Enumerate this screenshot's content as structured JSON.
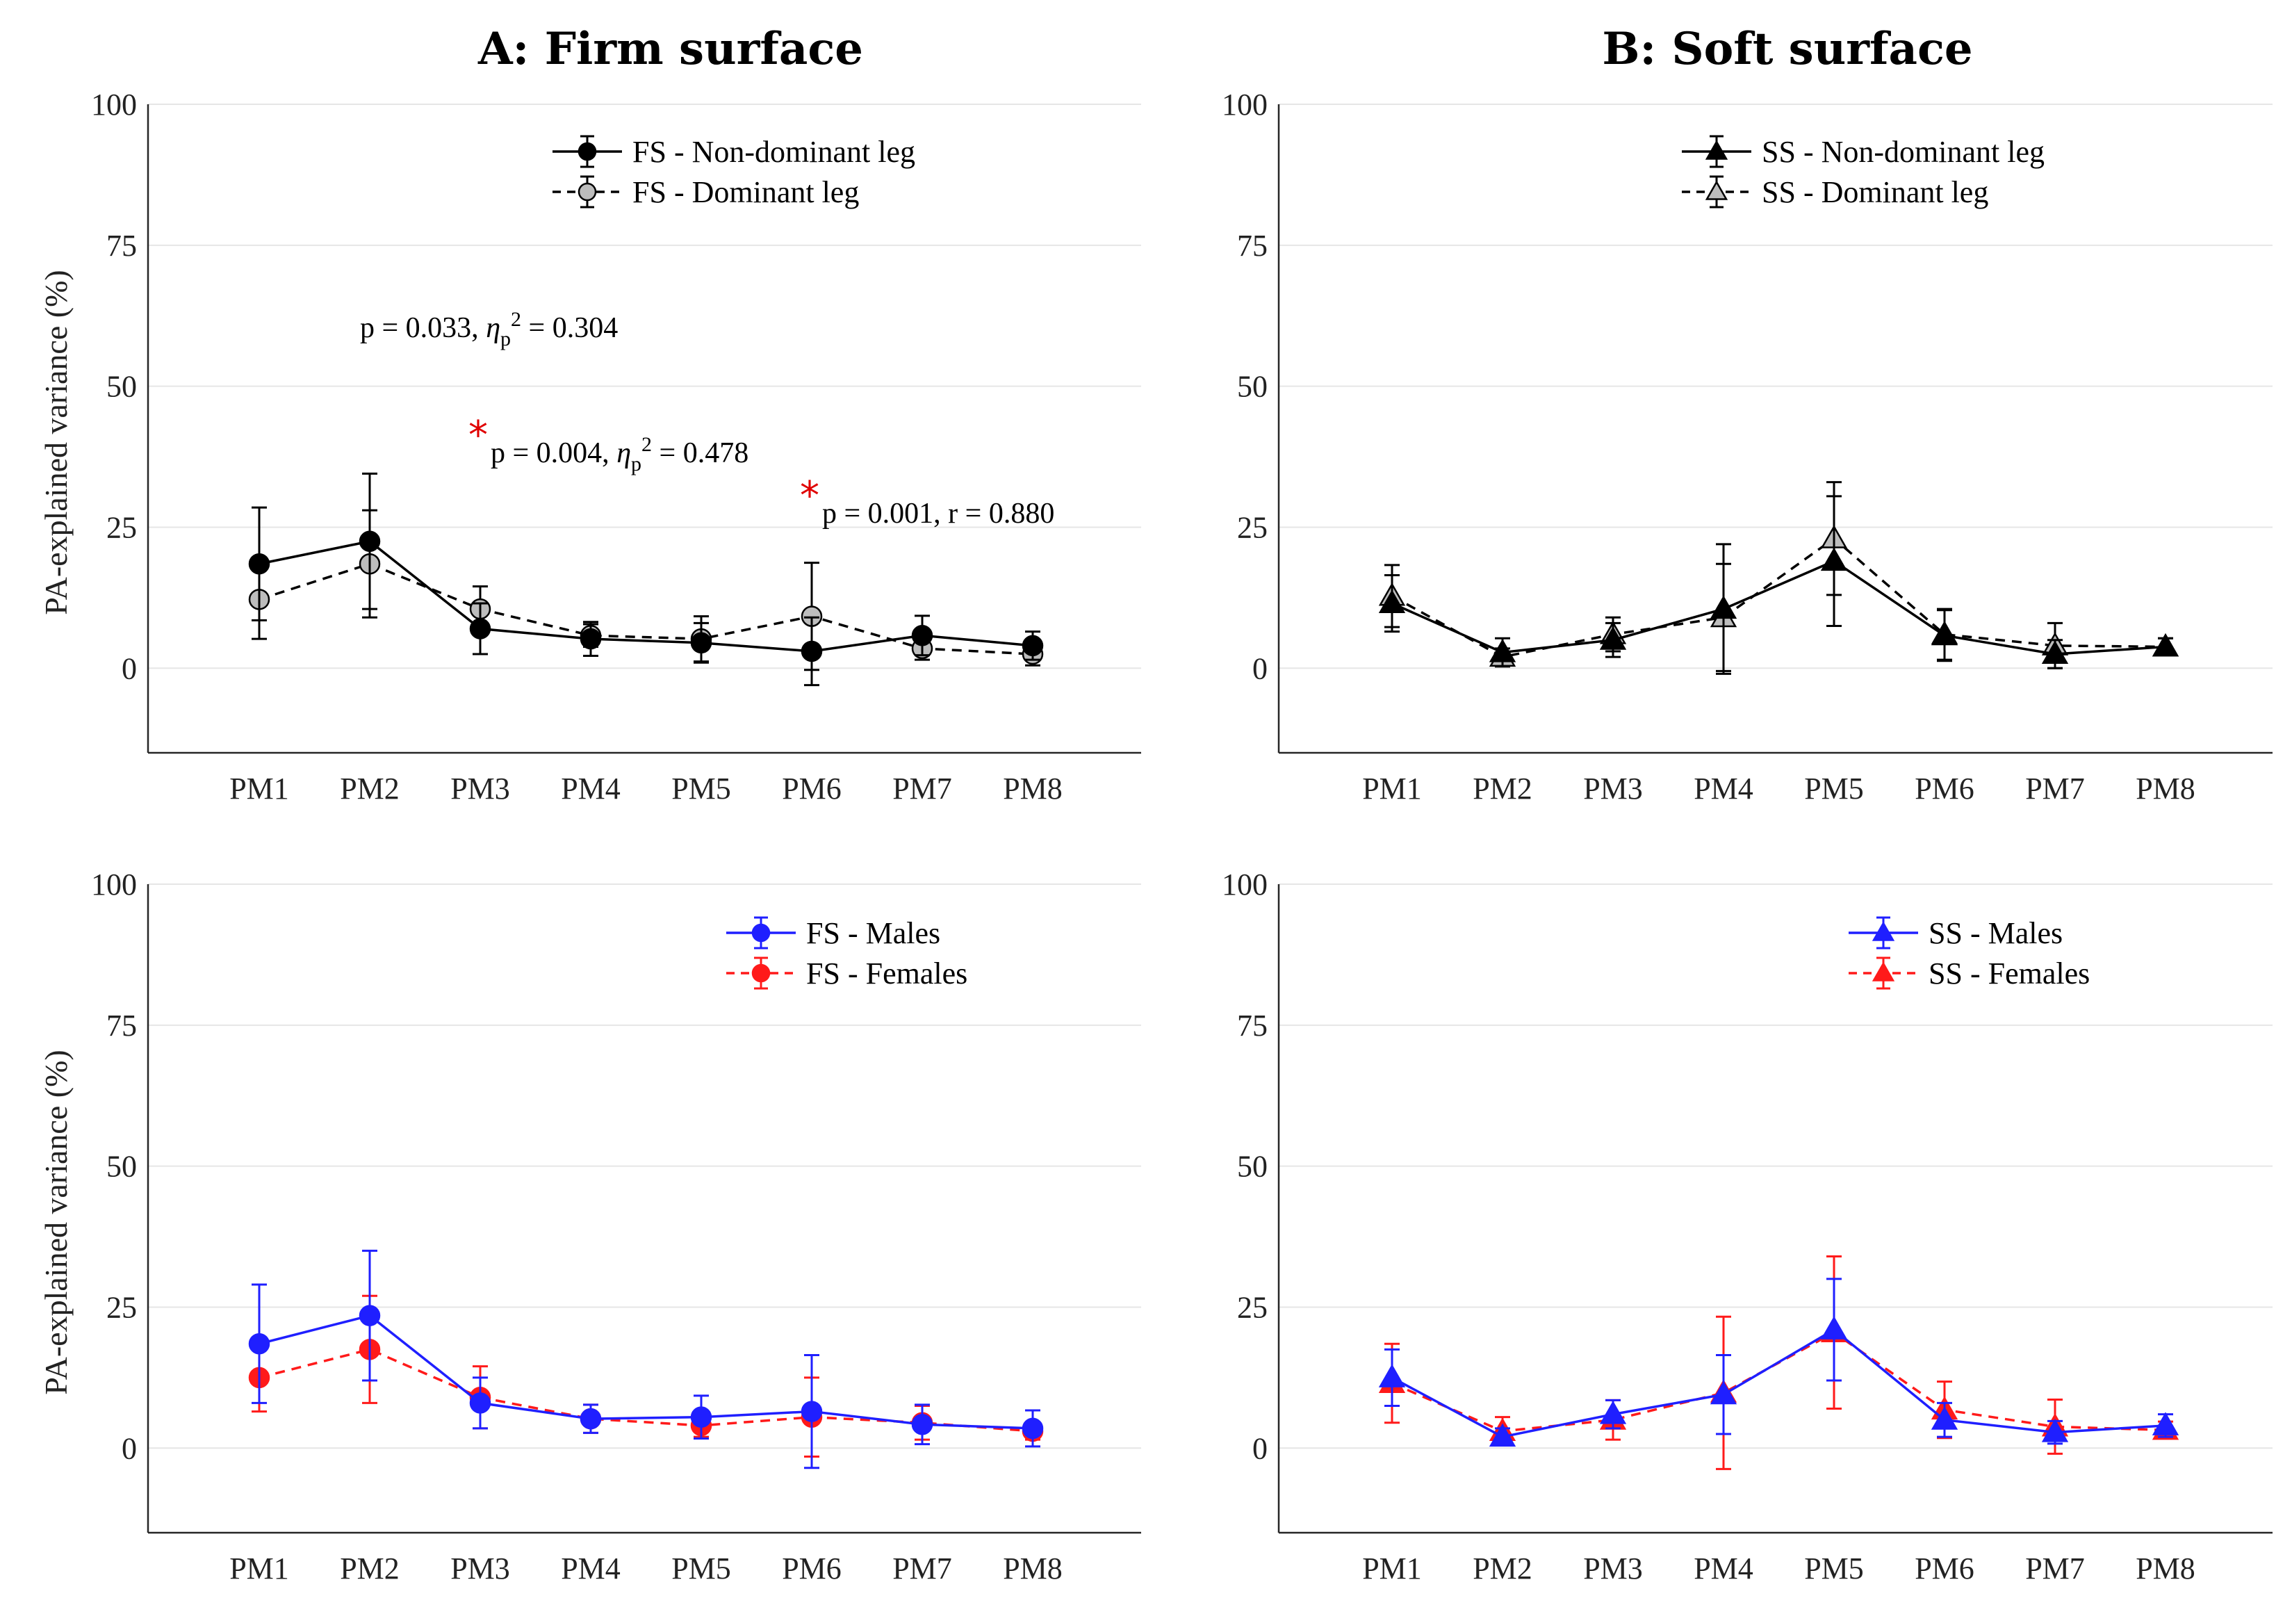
{
  "chart_data": [
    {
      "panel": "A-top",
      "type": "line",
      "title": "A: Firm surface",
      "ylabel": "PA-explained variance (%)",
      "xlabel": "",
      "ylim": [
        -15,
        100
      ],
      "yticks": [
        0,
        25,
        50,
        75,
        100
      ],
      "categories": [
        "PM1",
        "PM2",
        "PM3",
        "PM4",
        "PM5",
        "PM6",
        "PM7",
        "PM8"
      ],
      "legend_position": "top-right",
      "series": [
        {
          "name": "FS - Non-dominant leg",
          "color": "#000000",
          "marker_fill": "#000000",
          "marker": "circle",
          "dash": "solid",
          "values": [
            18.5,
            22.5,
            7.0,
            5.2,
            4.5,
            3.0,
            5.8,
            4.0
          ],
          "err": [
            10.0,
            12.0,
            4.5,
            3.0,
            3.5,
            6.0,
            3.5,
            2.5
          ]
        },
        {
          "name": "FS - Dominant leg",
          "color": "#000000",
          "marker_fill": "#bdbdbd",
          "marker": "circle",
          "dash": "dashed",
          "values": [
            12.2,
            18.5,
            10.5,
            5.8,
            5.2,
            9.2,
            3.5,
            2.5
          ],
          "err": [
            7.0,
            9.5,
            4.0,
            2.0,
            4.0,
            9.5,
            2.0,
            2.0
          ]
        }
      ],
      "annotations": [
        {
          "label": "p = 0.033, ",
          "eta": "η",
          "sub": "p",
          "sup": "2",
          "tail": " = 0.304",
          "star": false
        },
        {
          "label": "p = 0.004, ",
          "eta": "η",
          "sub": "p",
          "sup": "2",
          "tail": " = 0.478",
          "star": true
        },
        {
          "label": "p = 0.001, r = 0.880",
          "star": true
        }
      ]
    },
    {
      "panel": "B-top",
      "type": "line",
      "title": "B: Soft surface",
      "ylabel": "",
      "xlabel": "",
      "ylim": [
        -15,
        100
      ],
      "yticks": [
        0,
        25,
        50,
        75,
        100
      ],
      "categories": [
        "PM1",
        "PM2",
        "PM3",
        "PM4",
        "PM5",
        "PM6",
        "PM7",
        "PM8"
      ],
      "legend_position": "top-right",
      "series": [
        {
          "name": "SS - Non-dominant leg",
          "color": "#000000",
          "marker_fill": "#000000",
          "marker": "triangle",
          "dash": "solid",
          "values": [
            11.5,
            2.8,
            5.0,
            10.5,
            19.0,
            5.8,
            2.5,
            3.8
          ],
          "err": [
            5.0,
            2.5,
            3.0,
            11.5,
            11.5,
            4.5,
            2.5,
            1.5
          ]
        },
        {
          "name": "SS - Dominant leg",
          "color": "#000000",
          "marker_fill": "#bdbdbd",
          "marker": "triangle",
          "dash": "dashed",
          "values": [
            12.8,
            2.0,
            6.0,
            9.0,
            23.0,
            6.0,
            4.0,
            3.8
          ],
          "err": [
            5.5,
            1.5,
            3.0,
            9.5,
            10.0,
            4.5,
            4.0,
            1.5
          ]
        }
      ]
    },
    {
      "panel": "A-bottom",
      "type": "line",
      "ylabel": "PA-explained variance (%)",
      "xlabel": "",
      "ylim": [
        -15,
        100
      ],
      "yticks": [
        0,
        25,
        50,
        75,
        100
      ],
      "categories": [
        "PM1",
        "PM2",
        "PM3",
        "PM4",
        "PM5",
        "PM6",
        "PM7",
        "PM8"
      ],
      "legend_position": "top-right",
      "series": [
        {
          "name": "FS - Males",
          "color": "#1f1fff",
          "marker_fill": "#1f1fff",
          "marker": "circle",
          "dash": "solid",
          "values": [
            18.5,
            23.5,
            8.0,
            5.2,
            5.5,
            6.5,
            4.2,
            3.5
          ],
          "err": [
            10.5,
            11.5,
            4.5,
            2.5,
            3.8,
            10.0,
            3.5,
            3.2
          ]
        },
        {
          "name": "FS - Females",
          "color": "#ff1a1a",
          "marker_fill": "#ff1a1a",
          "marker": "circle",
          "dash": "dashed",
          "values": [
            12.5,
            17.5,
            9.0,
            5.2,
            4.0,
            5.5,
            4.5,
            3.0
          ],
          "err": [
            6.0,
            9.5,
            5.5,
            2.5,
            2.0,
            7.0,
            3.0,
            1.5
          ]
        }
      ]
    },
    {
      "panel": "B-bottom",
      "type": "line",
      "ylabel": "",
      "xlabel": "",
      "ylim": [
        -15,
        100
      ],
      "yticks": [
        0,
        25,
        50,
        75,
        100
      ],
      "categories": [
        "PM1",
        "PM2",
        "PM3",
        "PM4",
        "PM5",
        "PM6",
        "PM7",
        "PM8"
      ],
      "legend_position": "top-right",
      "series": [
        {
          "name": "SS - Males",
          "color": "#1f1fff",
          "marker_fill": "#1f1fff",
          "marker": "triangle",
          "dash": "solid",
          "values": [
            12.5,
            2.0,
            6.0,
            9.5,
            21.0,
            5.0,
            2.8,
            4.0
          ],
          "err": [
            5.0,
            1.5,
            2.5,
            7.0,
            9.0,
            3.0,
            2.0,
            2.0
          ]
        },
        {
          "name": "SS - Females",
          "color": "#ff1a1a",
          "marker_fill": "#ff1a1a",
          "marker": "triangle",
          "dash": "dashed",
          "values": [
            11.5,
            3.0,
            5.0,
            9.8,
            20.5,
            6.8,
            3.8,
            3.2
          ],
          "err": [
            7.0,
            2.5,
            3.5,
            13.5,
            13.5,
            5.0,
            4.8,
            1.5
          ]
        }
      ]
    }
  ]
}
